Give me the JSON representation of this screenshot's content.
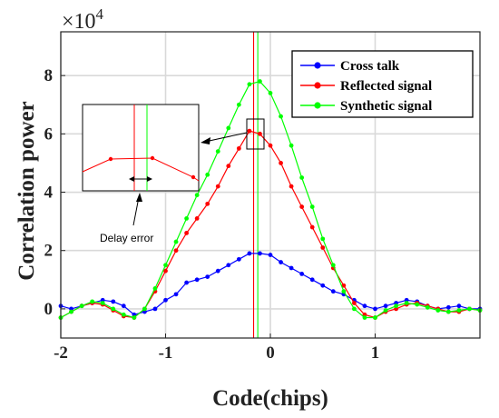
{
  "chart_data": {
    "type": "line",
    "title": "",
    "xlabel": "Code(chips)",
    "ylabel": "Correlation power",
    "y_exponent_label": "×10^4",
    "xlim": [
      -2,
      2
    ],
    "ylim": [
      -1,
      9.5
    ],
    "y_scale_factor": 10000,
    "xticks": [
      -2,
      -1,
      0,
      1
    ],
    "xtick_labels": [
      "-2",
      "-1",
      "0",
      "1"
    ],
    "yticks": [
      0,
      2,
      4,
      6,
      8
    ],
    "ytick_labels": [
      "0",
      "2",
      "4",
      "6",
      "8"
    ],
    "grid": true,
    "legend_position": "top-right",
    "series": [
      {
        "name": "Cross talk",
        "color": "#0000ff",
        "points": [
          [
            -2.0,
            0.1
          ],
          [
            -1.9,
            0.0
          ],
          [
            -1.8,
            0.1
          ],
          [
            -1.7,
            0.2
          ],
          [
            -1.6,
            0.3
          ],
          [
            -1.5,
            0.25
          ],
          [
            -1.4,
            0.1
          ],
          [
            -1.3,
            -0.2
          ],
          [
            -1.2,
            -0.1
          ],
          [
            -1.1,
            0.0
          ],
          [
            -1.0,
            0.3
          ],
          [
            -0.9,
            0.5
          ],
          [
            -0.8,
            0.9
          ],
          [
            -0.7,
            1.0
          ],
          [
            -0.6,
            1.1
          ],
          [
            -0.5,
            1.3
          ],
          [
            -0.4,
            1.5
          ],
          [
            -0.3,
            1.7
          ],
          [
            -0.2,
            1.9
          ],
          [
            -0.1,
            1.9
          ],
          [
            0.0,
            1.85
          ],
          [
            0.1,
            1.6
          ],
          [
            0.2,
            1.4
          ],
          [
            0.3,
            1.2
          ],
          [
            0.4,
            1.0
          ],
          [
            0.5,
            0.8
          ],
          [
            0.6,
            0.6
          ],
          [
            0.7,
            0.5
          ],
          [
            0.8,
            0.3
          ],
          [
            0.9,
            0.1
          ],
          [
            1.0,
            0.0
          ],
          [
            1.1,
            0.1
          ],
          [
            1.2,
            0.2
          ],
          [
            1.3,
            0.3
          ],
          [
            1.4,
            0.25
          ],
          [
            1.5,
            0.1
          ],
          [
            1.6,
            0.0
          ],
          [
            1.7,
            0.05
          ],
          [
            1.8,
            0.1
          ],
          [
            1.9,
            0.0
          ],
          [
            2.0,
            0.0
          ]
        ]
      },
      {
        "name": "Reflected signal",
        "color": "#ff0000",
        "points": [
          [
            -2.0,
            -0.3
          ],
          [
            -1.9,
            -0.1
          ],
          [
            -1.8,
            0.1
          ],
          [
            -1.7,
            0.2
          ],
          [
            -1.6,
            0.15
          ],
          [
            -1.5,
            -0.05
          ],
          [
            -1.4,
            -0.25
          ],
          [
            -1.3,
            -0.3
          ],
          [
            -1.2,
            0.0
          ],
          [
            -1.1,
            0.6
          ],
          [
            -1.0,
            1.3
          ],
          [
            -0.9,
            2.0
          ],
          [
            -0.8,
            2.6
          ],
          [
            -0.7,
            3.1
          ],
          [
            -0.6,
            3.6
          ],
          [
            -0.5,
            4.2
          ],
          [
            -0.4,
            4.9
          ],
          [
            -0.3,
            5.5
          ],
          [
            -0.2,
            6.1
          ],
          [
            -0.1,
            6.0
          ],
          [
            0.0,
            5.6
          ],
          [
            0.1,
            5.0
          ],
          [
            0.2,
            4.2
          ],
          [
            0.3,
            3.5
          ],
          [
            0.4,
            2.8
          ],
          [
            0.5,
            2.1
          ],
          [
            0.6,
            1.4
          ],
          [
            0.7,
            0.8
          ],
          [
            0.8,
            0.2
          ],
          [
            0.9,
            -0.2
          ],
          [
            1.0,
            -0.3
          ],
          [
            1.1,
            -0.1
          ],
          [
            1.2,
            0.0
          ],
          [
            1.3,
            0.15
          ],
          [
            1.4,
            0.2
          ],
          [
            1.5,
            0.1
          ],
          [
            1.6,
            0.0
          ],
          [
            1.7,
            -0.1
          ],
          [
            1.8,
            -0.1
          ],
          [
            1.9,
            0.0
          ],
          [
            2.0,
            -0.05
          ]
        ]
      },
      {
        "name": "Synthetic signal",
        "color": "#00ff00",
        "points": [
          [
            -2.0,
            -0.3
          ],
          [
            -1.9,
            -0.1
          ],
          [
            -1.8,
            0.1
          ],
          [
            -1.7,
            0.25
          ],
          [
            -1.6,
            0.2
          ],
          [
            -1.5,
            0.0
          ],
          [
            -1.4,
            -0.2
          ],
          [
            -1.3,
            -0.3
          ],
          [
            -1.2,
            0.0
          ],
          [
            -1.1,
            0.7
          ],
          [
            -1.0,
            1.5
          ],
          [
            -0.9,
            2.3
          ],
          [
            -0.8,
            3.1
          ],
          [
            -0.7,
            3.9
          ],
          [
            -0.6,
            4.6
          ],
          [
            -0.5,
            5.4
          ],
          [
            -0.4,
            6.2
          ],
          [
            -0.3,
            7.0
          ],
          [
            -0.2,
            7.7
          ],
          [
            -0.1,
            7.8
          ],
          [
            0.0,
            7.4
          ],
          [
            0.1,
            6.6
          ],
          [
            0.2,
            5.6
          ],
          [
            0.3,
            4.5
          ],
          [
            0.4,
            3.5
          ],
          [
            0.5,
            2.4
          ],
          [
            0.6,
            1.5
          ],
          [
            0.7,
            0.6
          ],
          [
            0.8,
            0.0
          ],
          [
            0.9,
            -0.3
          ],
          [
            1.0,
            -0.3
          ],
          [
            1.1,
            -0.05
          ],
          [
            1.2,
            0.1
          ],
          [
            1.3,
            0.2
          ],
          [
            1.4,
            0.15
          ],
          [
            1.5,
            0.05
          ],
          [
            1.6,
            -0.05
          ],
          [
            1.7,
            -0.1
          ],
          [
            1.8,
            -0.05
          ],
          [
            1.9,
            0.0
          ],
          [
            2.0,
            -0.05
          ]
        ]
      }
    ],
    "vertical_lines": [
      {
        "x": -0.16,
        "color": "#ff0000"
      },
      {
        "x": -0.12,
        "color": "#00ff00"
      }
    ],
    "annotations": {
      "zoom_label": "Delay error"
    }
  }
}
